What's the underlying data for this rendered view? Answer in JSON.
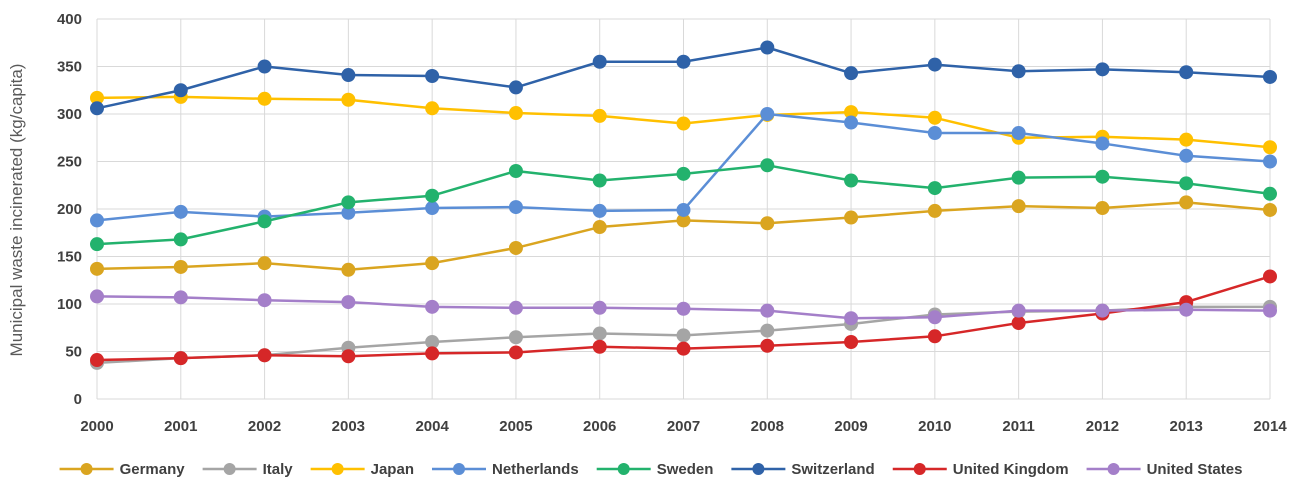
{
  "chart_data": {
    "type": "line",
    "title": "",
    "xlabel": "",
    "ylabel": "Municipal waste incinerated (kg/capita)",
    "categories": [
      "2000",
      "2001",
      "2002",
      "2003",
      "2004",
      "2005",
      "2006",
      "2007",
      "2008",
      "2009",
      "2010",
      "2011",
      "2012",
      "2013",
      "2014"
    ],
    "ylim": [
      0,
      400
    ],
    "yticks": [
      "0",
      "50",
      "100",
      "150",
      "200",
      "250",
      "300",
      "350",
      "400"
    ],
    "grid": true,
    "legend_position": "bottom",
    "series": [
      {
        "name": "Germany",
        "color": "#DAA520",
        "values": [
          137,
          139,
          143,
          136,
          143,
          159,
          181,
          188,
          185,
          191,
          198,
          203,
          201,
          207,
          199
        ]
      },
      {
        "name": "Italy",
        "color": "#A5A5A5",
        "values": [
          38,
          43,
          46,
          54,
          60,
          65,
          69,
          67,
          72,
          79,
          89,
          92,
          93,
          97,
          97
        ]
      },
      {
        "name": "Japan",
        "color": "#FFC000",
        "values": [
          317,
          318,
          316,
          315,
          306,
          301,
          298,
          290,
          299,
          302,
          296,
          275,
          276,
          273,
          265
        ]
      },
      {
        "name": "Netherlands",
        "color": "#5B8ED6",
        "values": [
          188,
          197,
          192,
          196,
          201,
          202,
          198,
          199,
          300,
          291,
          280,
          280,
          269,
          256,
          250
        ]
      },
      {
        "name": "Sweden",
        "color": "#23B26D",
        "values": [
          163,
          168,
          187,
          207,
          214,
          240,
          230,
          237,
          246,
          230,
          222,
          233,
          234,
          227,
          216
        ]
      },
      {
        "name": "Switzerland",
        "color": "#2F62A8",
        "values": [
          306,
          325,
          350,
          341,
          340,
          328,
          355,
          355,
          370,
          343,
          352,
          345,
          347,
          344,
          339
        ]
      },
      {
        "name": "United Kingdom",
        "color": "#D62728",
        "values": [
          41,
          43,
          46,
          45,
          48,
          49,
          55,
          53,
          56,
          60,
          66,
          80,
          90,
          102,
          129
        ]
      },
      {
        "name": "United States",
        "color": "#A47FC9",
        "values": [
          108,
          107,
          104,
          102,
          97,
          96,
          96,
          95,
          93,
          85,
          86,
          93,
          93,
          94,
          93
        ]
      }
    ]
  }
}
